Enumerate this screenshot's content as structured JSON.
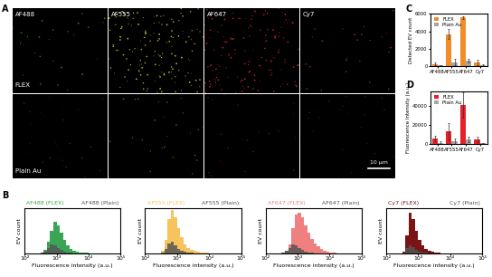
{
  "chart_data": [
    {
      "type": "image",
      "panel_label": "A",
      "columns": [
        "AF488",
        "AF555",
        "AF647",
        "Cy7"
      ],
      "rows": [
        "FLEX",
        "Plain Au"
      ],
      "colors": [
        "#3a9a2a",
        "#e8e040",
        "#e03030",
        "#b03040"
      ],
      "scale_bar": "10 μm"
    },
    {
      "type": "histogram",
      "panel_label": "B",
      "x_label": "Fluorescence intensity (a.u.)",
      "y_label": "EV count",
      "log": "x",
      "tick_labels": "x",
      "xlim": [
        100,
        100000
      ],
      "xticks": [
        {
          "value": 100,
          "label": "10²"
        },
        {
          "value": 1000,
          "label": "10³"
        },
        {
          "value": 10000,
          "label": "10⁴"
        },
        {
          "value": 100000,
          "label": "10⁵"
        }
      ],
      "ylim": [
        0,
        100
      ],
      "bins": [
        251,
        316,
        398,
        501,
        631,
        794,
        1000,
        1259,
        1585,
        1995,
        2512,
        3162,
        3981,
        5012,
        6310,
        7943,
        10000,
        12589,
        15849,
        19953,
        25119
      ],
      "series": [
        {
          "name": "AF488 (FLEX)",
          "color": "#3aa655",
          "values": [
            0,
            2,
            8,
            25,
            50,
            70,
            62,
            45,
            30,
            18,
            10,
            6,
            3,
            2,
            1,
            1,
            0,
            0,
            0,
            0
          ]
        },
        {
          "name": "AF488 (Plain)",
          "color": "#555555",
          "values": [
            0,
            1,
            4,
            12,
            20,
            18,
            12,
            7,
            4,
            2,
            1,
            0,
            0,
            0,
            0,
            0,
            0,
            0,
            0,
            0
          ]
        }
      ]
    },
    {
      "type": "histogram",
      "x_label": "Fluorescence intensity (a.u.)",
      "y_label": "EV count",
      "log": "x",
      "tick_labels": "x",
      "xlim": [
        100,
        100000
      ],
      "xticks": [
        {
          "value": 100,
          "label": "10²"
        },
        {
          "value": 1000,
          "label": "10³"
        },
        {
          "value": 10000,
          "label": "10⁴"
        },
        {
          "value": 100000,
          "label": "10⁵"
        }
      ],
      "ylim": [
        0,
        100
      ],
      "bins": [
        251,
        316,
        398,
        501,
        631,
        794,
        1000,
        1259,
        1585,
        1995,
        2512,
        3162,
        3981,
        5012,
        6310,
        7943,
        10000,
        12589,
        15849,
        19953,
        25119
      ],
      "series": [
        {
          "name": "AF555 (FLEX)",
          "color": "#f7c35c",
          "values": [
            0,
            5,
            30,
            75,
            95,
            80,
            55,
            35,
            20,
            12,
            8,
            5,
            3,
            2,
            1,
            1,
            0,
            0,
            0,
            0
          ]
        },
        {
          "name": "AF555 (Plain)",
          "color": "#555555",
          "values": [
            0,
            2,
            10,
            22,
            25,
            18,
            10,
            5,
            3,
            1,
            1,
            0,
            0,
            0,
            0,
            0,
            0,
            0,
            0,
            0
          ]
        }
      ]
    },
    {
      "type": "histogram",
      "x_label": "Fluorescence intensity (a.u.)",
      "y_label": "EV count",
      "log": "x",
      "tick_labels": "x",
      "xlim": [
        100,
        100000
      ],
      "xticks": [
        {
          "value": 100,
          "label": "10²"
        },
        {
          "value": 1000,
          "label": "10³"
        },
        {
          "value": 10000,
          "label": "10⁴"
        },
        {
          "value": 100000,
          "label": "10⁵"
        }
      ],
      "ylim": [
        0,
        100
      ],
      "bins": [
        251,
        316,
        398,
        501,
        631,
        794,
        1000,
        1259,
        1585,
        1995,
        2512,
        3162,
        3981,
        5012,
        6310,
        7943,
        10000,
        12589,
        15849,
        19953,
        25119
      ],
      "series": [
        {
          "name": "AF647 (FLEX)",
          "color": "#f08080",
          "values": [
            0,
            1,
            5,
            20,
            55,
            85,
            90,
            80,
            62,
            45,
            32,
            22,
            15,
            10,
            6,
            4,
            2,
            1,
            0,
            0
          ]
        },
        {
          "name": "AF647 (Plain)",
          "color": "#555555",
          "values": [
            0,
            1,
            5,
            12,
            20,
            18,
            12,
            7,
            4,
            2,
            1,
            0,
            0,
            0,
            0,
            0,
            0,
            0,
            0,
            0
          ]
        }
      ]
    },
    {
      "type": "histogram",
      "x_label": "Fluorescence intensity (a.u.)",
      "y_label": "EV count",
      "log": "x",
      "tick_labels": "x",
      "xlim": [
        100,
        100000
      ],
      "xticks": [
        {
          "value": 100,
          "label": "10²"
        },
        {
          "value": 1000,
          "label": "10³"
        },
        {
          "value": 10000,
          "label": "10⁴"
        },
        {
          "value": 100000,
          "label": "10⁵"
        }
      ],
      "ylim": [
        0,
        100
      ],
      "bins": [
        251,
        316,
        398,
        501,
        631,
        794,
        1000,
        1259,
        1585,
        1995,
        2512,
        3162,
        3981,
        5012,
        6310,
        7943,
        10000,
        12589,
        15849,
        19953,
        25119
      ],
      "series": [
        {
          "name": "Cy7 (FLEX)",
          "color": "#7b1515",
          "values": [
            0,
            3,
            40,
            90,
            75,
            50,
            30,
            18,
            10,
            6,
            3,
            2,
            1,
            0,
            0,
            0,
            0,
            0,
            0,
            0
          ]
        },
        {
          "name": "Cy7 (Plain)",
          "color": "#555555",
          "values": [
            0,
            2,
            12,
            18,
            14,
            8,
            4,
            2,
            1,
            0,
            0,
            0,
            0,
            0,
            0,
            0,
            0,
            0,
            0,
            0
          ]
        }
      ]
    },
    {
      "type": "bar",
      "panel_label": "C",
      "y_label": "Detected EV count",
      "categories": [
        "AF488",
        "AF555",
        "AF647",
        "Cy7"
      ],
      "ylim": [
        0,
        6000
      ],
      "yticks": [
        0,
        2000,
        4000,
        6000
      ],
      "legend": "upper left",
      "series": [
        {
          "name": "FLEX",
          "color": "#f28c28",
          "values": [
            300,
            3700,
            5600,
            500
          ],
          "errors": [
            150,
            600,
            150,
            300
          ]
        },
        {
          "name": "Plain Au",
          "color": "#a6a6a6",
          "values": [
            100,
            500,
            700,
            150
          ],
          "errors": [
            80,
            400,
            200,
            100
          ]
        }
      ]
    },
    {
      "type": "bar",
      "panel_label": "D",
      "y_label": "Fluorescence Intensity (a.u.)",
      "categories": [
        "AF488",
        "AF555",
        "AF647",
        "Cy7"
      ],
      "ylim": [
        0,
        55000
      ],
      "yticks": [
        0,
        20000,
        40000
      ],
      "legend": "upper left",
      "series": [
        {
          "name": "FLEX",
          "color": "#e8202a",
          "values": [
            5500,
            13000,
            41000,
            5000
          ],
          "errors": [
            3000,
            9000,
            13000,
            3000
          ]
        },
        {
          "name": "Plain Au",
          "color": "#a6a6a6",
          "values": [
            1500,
            3000,
            5000,
            800
          ],
          "errors": [
            1000,
            2500,
            3000,
            600
          ]
        }
      ]
    }
  ]
}
